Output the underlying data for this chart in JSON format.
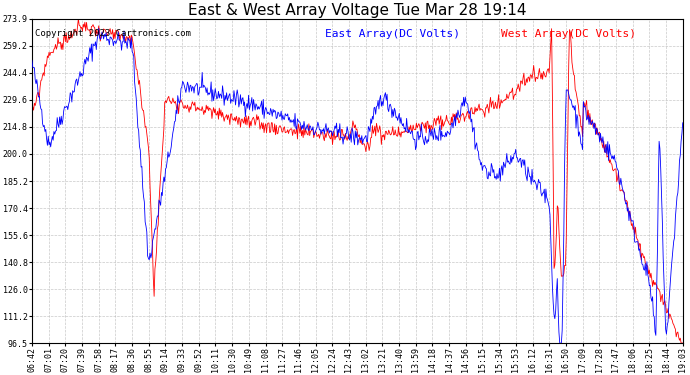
{
  "title": "East & West Array Voltage Tue Mar 28 19:14",
  "copyright": "Copyright 2023 Cartronics.com",
  "legend_east": "East Array(DC Volts)",
  "legend_west": "West Array(DC Volts)",
  "east_color": "#0000ff",
  "west_color": "#ff0000",
  "bg_color": "#ffffff",
  "grid_color": "#bbbbbb",
  "ylim": [
    96.5,
    273.9
  ],
  "yticks": [
    96.5,
    111.2,
    126.0,
    140.8,
    155.6,
    170.4,
    185.2,
    200.0,
    214.8,
    229.6,
    244.4,
    259.2,
    273.9
  ],
  "x_labels": [
    "06:42",
    "07:01",
    "07:20",
    "07:39",
    "07:58",
    "08:17",
    "08:36",
    "08:55",
    "09:14",
    "09:33",
    "09:52",
    "10:11",
    "10:30",
    "10:49",
    "11:08",
    "11:27",
    "11:46",
    "12:05",
    "12:24",
    "12:43",
    "13:02",
    "13:21",
    "13:40",
    "13:59",
    "14:18",
    "14:37",
    "14:56",
    "15:15",
    "15:34",
    "15:53",
    "16:12",
    "16:31",
    "16:50",
    "17:09",
    "17:28",
    "17:47",
    "18:06",
    "18:25",
    "18:44",
    "19:03"
  ],
  "title_fontsize": 11,
  "copyright_fontsize": 6.5,
  "legend_fontsize": 8,
  "tick_fontsize": 6
}
